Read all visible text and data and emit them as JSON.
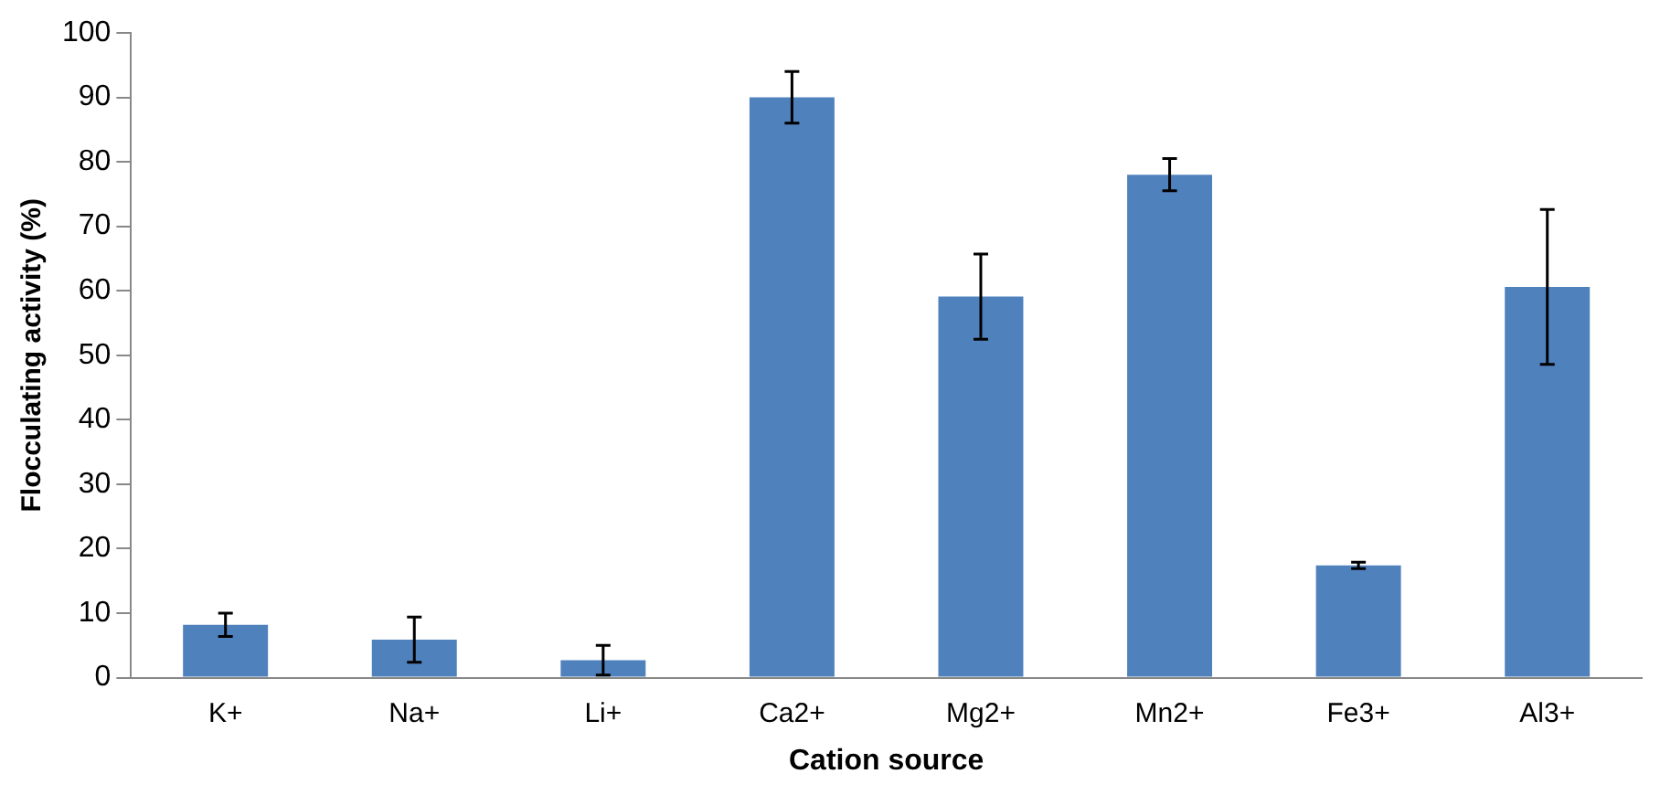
{
  "chart_data": {
    "type": "bar",
    "xlabel": "Cation source",
    "ylabel": "Flocculating activity (%)",
    "categories": [
      "K+",
      "Na+",
      "Li+",
      "Ca2+",
      "Mg2+",
      "Mn2+",
      "Fe3+",
      "Al3+"
    ],
    "values": [
      8.2,
      5.9,
      2.7,
      90,
      59.1,
      78,
      17.4,
      60.6
    ],
    "errors": [
      1.8,
      3.5,
      2.3,
      4,
      6.6,
      2.5,
      0.5,
      12
    ],
    "color": "#4f81bd",
    "ylim": [
      0,
      100
    ],
    "yticks": [
      0,
      10,
      20,
      30,
      40,
      50,
      60,
      70,
      80,
      90,
      100
    ],
    "grid": false,
    "legend": false
  }
}
